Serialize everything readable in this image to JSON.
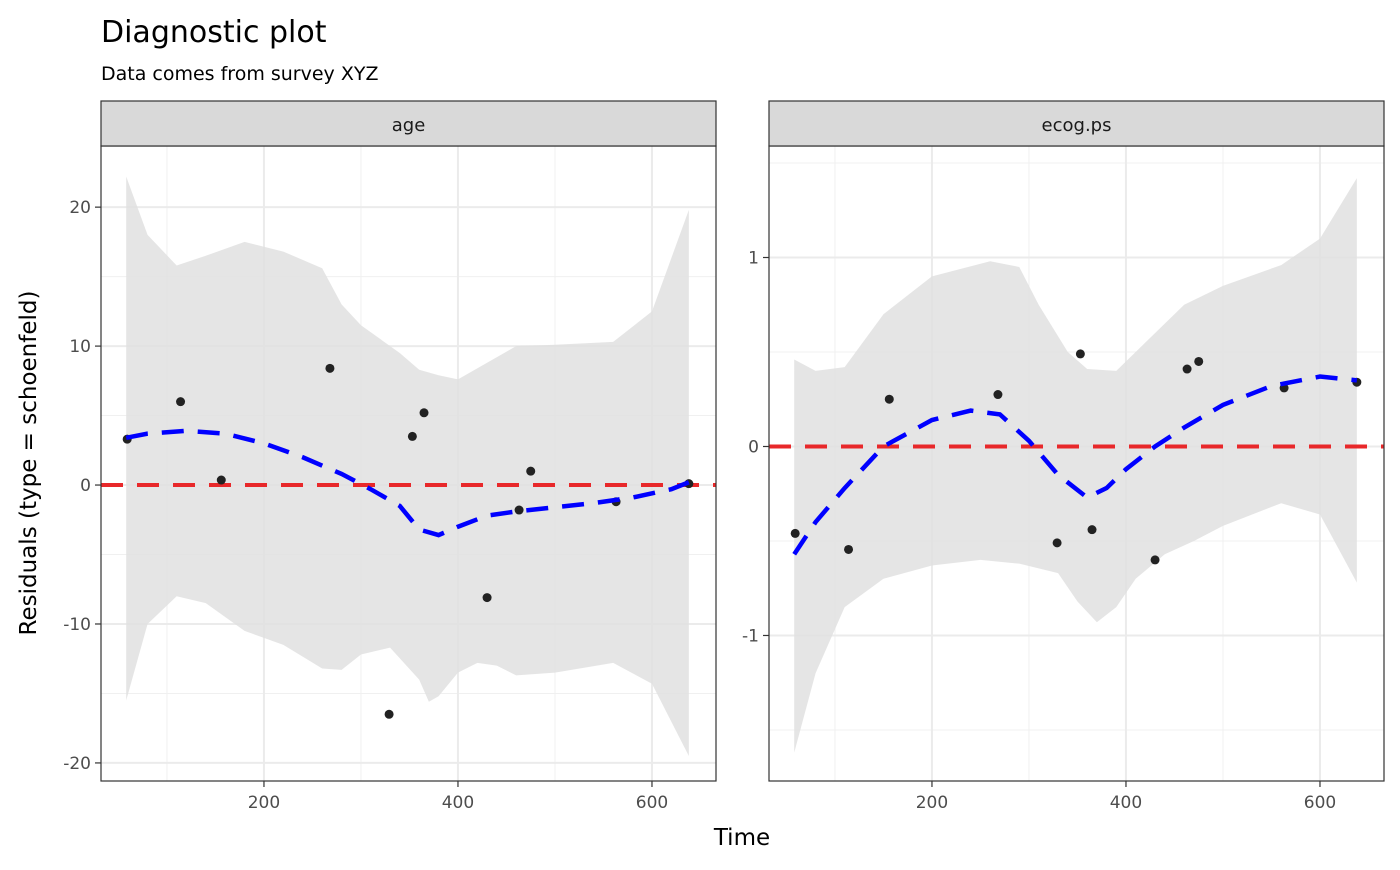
{
  "chart_data": {
    "type": "scatter",
    "title": "Diagnostic plot",
    "subtitle": "Data comes from survey XYZ",
    "xlabel": "Time",
    "ylabel": "Residuals (type = schoenfeld)",
    "grid": true,
    "colors": {
      "points": "#222222",
      "smooth": "#0000ff",
      "reference": "#e8282a",
      "ribbon": "#e0e0e0",
      "strip": "#d9d9d9"
    },
    "panels": [
      {
        "strip": "age",
        "xlim": [
          32,
          666
        ],
        "ylim": [
          -21.3,
          24.4
        ],
        "xticks": [
          200,
          400,
          600
        ],
        "xminor": [
          100,
          300,
          500
        ],
        "yticks": [
          -20,
          -10,
          0,
          10,
          20
        ],
        "ytick_labels": [
          "-20",
          "-10",
          "0",
          "10",
          "20"
        ],
        "yminor": [
          -15,
          -5,
          5,
          15
        ],
        "reference_y": 0,
        "points": [
          [
            59,
            3.3
          ],
          [
            114,
            6.0
          ],
          [
            156,
            0.36
          ],
          [
            268,
            8.4
          ],
          [
            329,
            -16.5
          ],
          [
            353,
            3.5
          ],
          [
            365,
            5.2
          ],
          [
            430,
            -8.1
          ],
          [
            463,
            -1.8
          ],
          [
            475,
            1.0
          ],
          [
            563,
            -1.2
          ],
          [
            638,
            0.1
          ]
        ],
        "smooth": [
          [
            58,
            3.4
          ],
          [
            80,
            3.7
          ],
          [
            120,
            3.9
          ],
          [
            160,
            3.7
          ],
          [
            200,
            3.0
          ],
          [
            240,
            2.0
          ],
          [
            280,
            0.8
          ],
          [
            310,
            -0.3
          ],
          [
            340,
            -1.5
          ],
          [
            360,
            -3.2
          ],
          [
            380,
            -3.6
          ],
          [
            400,
            -3.0
          ],
          [
            430,
            -2.2
          ],
          [
            460,
            -1.9
          ],
          [
            500,
            -1.6
          ],
          [
            540,
            -1.3
          ],
          [
            580,
            -0.9
          ],
          [
            620,
            -0.3
          ],
          [
            638,
            0.2
          ]
        ],
        "ribbon_upper": [
          [
            58,
            22.2
          ],
          [
            80,
            18
          ],
          [
            110,
            15.8
          ],
          [
            140,
            16.5
          ],
          [
            180,
            17.5
          ],
          [
            220,
            16.8
          ],
          [
            260,
            15.6
          ],
          [
            280,
            13
          ],
          [
            300,
            11.5
          ],
          [
            340,
            9.5
          ],
          [
            360,
            8.3
          ],
          [
            380,
            7.9
          ],
          [
            400,
            7.6
          ],
          [
            430,
            8.8
          ],
          [
            460,
            10
          ],
          [
            500,
            10.1
          ],
          [
            560,
            10.3
          ],
          [
            600,
            12.5
          ],
          [
            638,
            19.8
          ]
        ],
        "ribbon_lower": [
          [
            58,
            -15.5
          ],
          [
            80,
            -10
          ],
          [
            110,
            -8
          ],
          [
            140,
            -8.5
          ],
          [
            180,
            -10.5
          ],
          [
            220,
            -11.5
          ],
          [
            260,
            -13.2
          ],
          [
            280,
            -13.3
          ],
          [
            300,
            -12.2
          ],
          [
            330,
            -11.7
          ],
          [
            360,
            -14
          ],
          [
            370,
            -15.6
          ],
          [
            380,
            -15.2
          ],
          [
            400,
            -13.5
          ],
          [
            420,
            -12.8
          ],
          [
            440,
            -13
          ],
          [
            460,
            -13.7
          ],
          [
            500,
            -13.5
          ],
          [
            560,
            -12.8
          ],
          [
            600,
            -14.3
          ],
          [
            638,
            -19.5
          ]
        ]
      },
      {
        "strip": "ecog.ps",
        "xlim": [
          32,
          666
        ],
        "ylim": [
          -1.77,
          1.59
        ],
        "xticks": [
          200,
          400,
          600
        ],
        "xminor": [
          100,
          300,
          500
        ],
        "yticks": [
          -1,
          0,
          1
        ],
        "ytick_labels": [
          "-1",
          "0",
          "1"
        ],
        "yminor": [
          -1.5,
          -0.5,
          0.5,
          1.5
        ],
        "reference_y": 0,
        "points": [
          [
            59,
            -0.46
          ],
          [
            114,
            -0.545
          ],
          [
            156,
            0.25
          ],
          [
            268,
            0.275
          ],
          [
            329,
            -0.51
          ],
          [
            353,
            0.49
          ],
          [
            365,
            -0.44
          ],
          [
            430,
            -0.6
          ],
          [
            463,
            0.41
          ],
          [
            475,
            0.45
          ],
          [
            563,
            0.31
          ],
          [
            638,
            0.34
          ]
        ],
        "smooth": [
          [
            58,
            -0.57
          ],
          [
            80,
            -0.4
          ],
          [
            110,
            -0.22
          ],
          [
            150,
            0.0
          ],
          [
            200,
            0.14
          ],
          [
            240,
            0.19
          ],
          [
            270,
            0.17
          ],
          [
            300,
            0.03
          ],
          [
            330,
            -0.15
          ],
          [
            360,
            -0.27
          ],
          [
            380,
            -0.22
          ],
          [
            400,
            -0.12
          ],
          [
            430,
            0.0
          ],
          [
            460,
            0.1
          ],
          [
            500,
            0.22
          ],
          [
            550,
            0.32
          ],
          [
            600,
            0.37
          ],
          [
            638,
            0.35
          ]
        ],
        "ribbon_upper": [
          [
            58,
            0.46
          ],
          [
            80,
            0.4
          ],
          [
            110,
            0.42
          ],
          [
            150,
            0.7
          ],
          [
            200,
            0.9
          ],
          [
            260,
            0.98
          ],
          [
            290,
            0.95
          ],
          [
            310,
            0.75
          ],
          [
            340,
            0.5
          ],
          [
            360,
            0.41
          ],
          [
            390,
            0.4
          ],
          [
            420,
            0.55
          ],
          [
            460,
            0.75
          ],
          [
            500,
            0.85
          ],
          [
            560,
            0.96
          ],
          [
            600,
            1.1
          ],
          [
            638,
            1.42
          ]
        ],
        "ribbon_lower": [
          [
            58,
            -1.62
          ],
          [
            80,
            -1.2
          ],
          [
            110,
            -0.85
          ],
          [
            150,
            -0.7
          ],
          [
            200,
            -0.63
          ],
          [
            250,
            -0.6
          ],
          [
            290,
            -0.62
          ],
          [
            330,
            -0.67
          ],
          [
            350,
            -0.82
          ],
          [
            370,
            -0.93
          ],
          [
            390,
            -0.85
          ],
          [
            410,
            -0.7
          ],
          [
            440,
            -0.57
          ],
          [
            470,
            -0.5
          ],
          [
            500,
            -0.42
          ],
          [
            560,
            -0.3
          ],
          [
            600,
            -0.36
          ],
          [
            638,
            -0.72
          ]
        ]
      }
    ]
  }
}
